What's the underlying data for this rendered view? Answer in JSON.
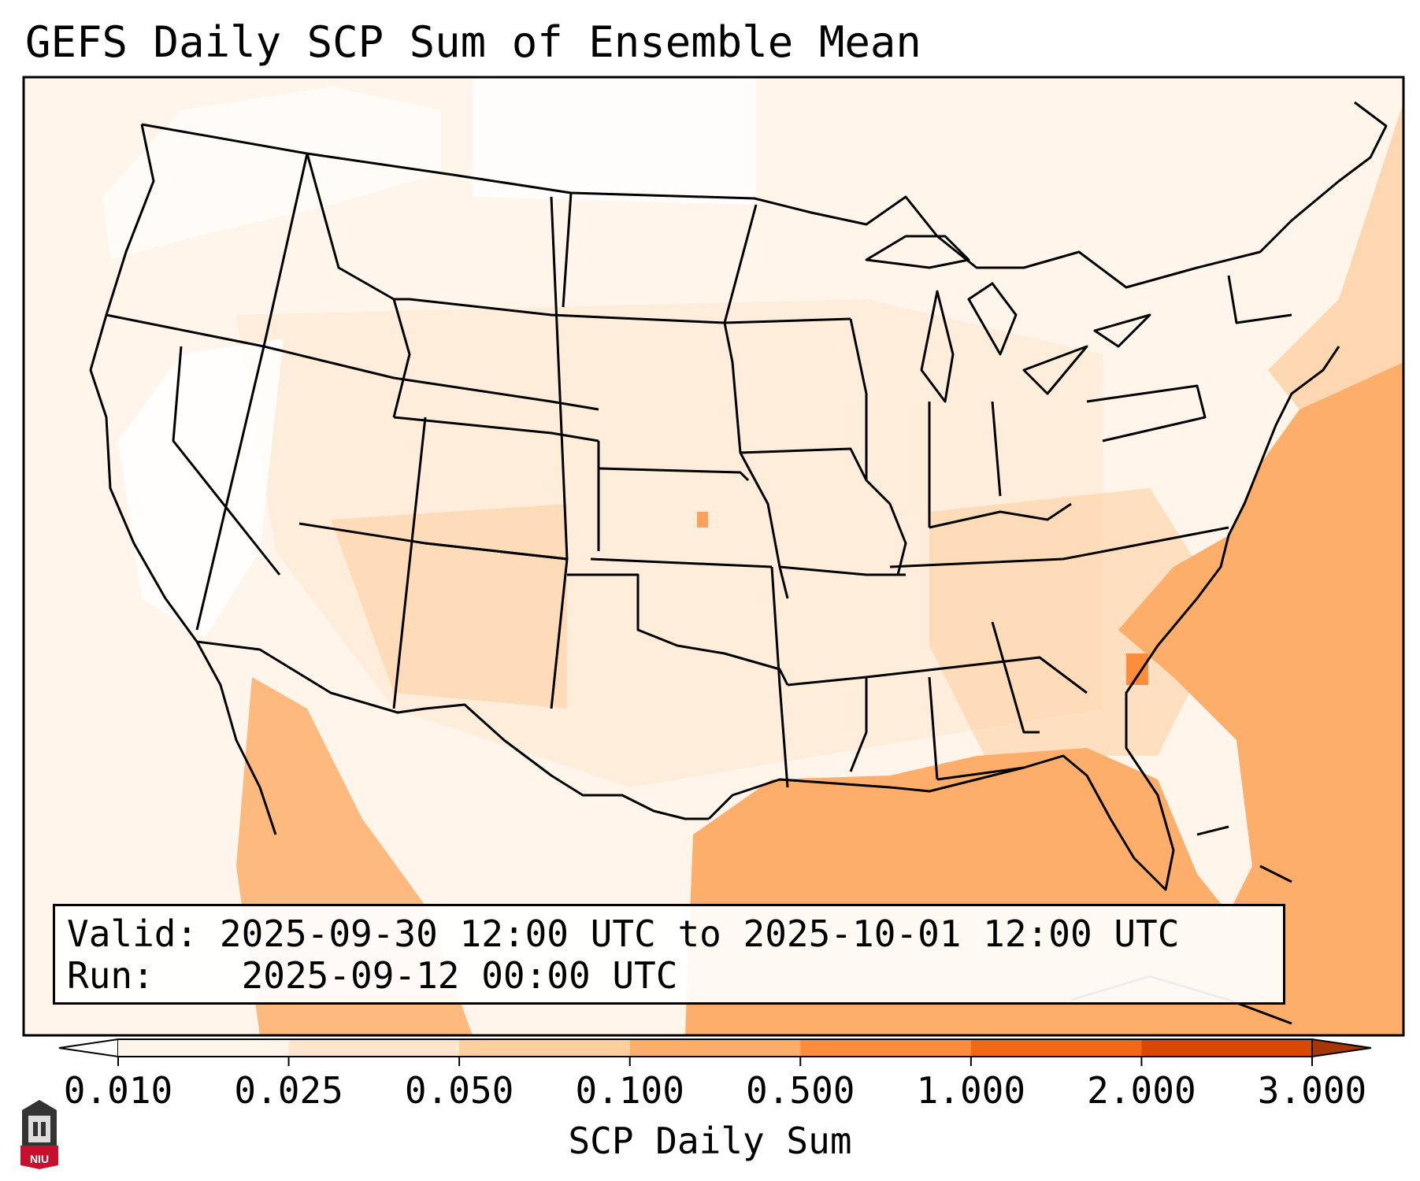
{
  "title": "GEFS Daily SCP Sum of Ensemble Mean",
  "info": {
    "valid_label": "Valid:",
    "valid_value": "2025-09-30 12:00 UTC to 2025-10-01 12:00 UTC",
    "run_label": "Run:",
    "run_value": "2025-09-12 00:00 UTC"
  },
  "colorbar": {
    "label": "SCP Daily Sum",
    "ticks": [
      "0.010",
      "0.025",
      "0.050",
      "0.100",
      "0.500",
      "1.000",
      "2.000",
      "3.000"
    ],
    "colors": [
      "#fff5eb",
      "#fee6ce",
      "#fdd0a2",
      "#fdae6b",
      "#fd8d3c",
      "#f16913",
      "#d94801",
      "#a63603"
    ]
  },
  "logo": {
    "text": "NIU"
  },
  "map_data": {
    "region": "Contiguous United States, northern Mexico and southern Canada",
    "field": "SCP Daily Sum (GEFS ensemble mean)",
    "highest_values": "Gulf of Mexico and western Atlantic Ocean, approx. 0.100-0.500",
    "moderate_values": "Southeastern US, Texas, New Mexico, Arizona, Baja California, approx. 0.025-0.100",
    "lowest_values": "Northern Plains, Pacific Northwest, Canada, mostly below 0.010"
  }
}
